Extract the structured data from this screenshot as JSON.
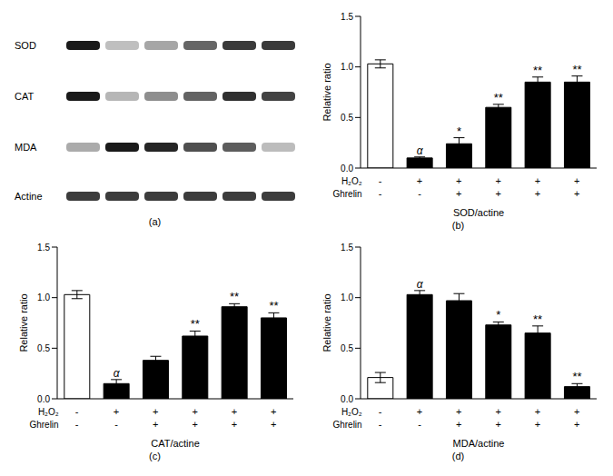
{
  "blot": {
    "panel_label": "(a)",
    "rows": [
      "SOD",
      "CAT",
      "MDA",
      "Actine"
    ]
  },
  "chart_data": [
    {
      "type": "bar",
      "panel_label": "(b)",
      "y_label": "Relative ratio",
      "x_label": "SOD/actine",
      "categories": [
        null,
        null,
        null,
        null,
        null,
        null
      ],
      "values": [
        1.03,
        0.1,
        0.24,
        0.6,
        0.85,
        0.85
      ],
      "errors": [
        0.04,
        0.01,
        0.06,
        0.03,
        0.05,
        0.06
      ],
      "annotations": [
        null,
        "α",
        "*",
        "**",
        "**",
        "**"
      ],
      "colors": [
        "#ffffff",
        "#000000",
        "#000000",
        "#000000",
        "#000000",
        "#000000"
      ],
      "conditions": [
        {
          "label": "H₂O₂",
          "marks": [
            "-",
            "+",
            "+",
            "+",
            "+",
            "+"
          ]
        },
        {
          "label": "Ghrelin",
          "marks": [
            "-",
            "-",
            "+",
            "+",
            "+",
            "+"
          ]
        }
      ],
      "ylim": [
        0,
        1.5
      ],
      "yticks": [
        {
          "value": 0,
          "label": "0.0"
        },
        {
          "value": 0.5,
          "label": "0.5"
        },
        {
          "value": 1,
          "label": "1.0"
        },
        {
          "value": 1.5,
          "label": "1.5"
        }
      ],
      "grid": false
    },
    {
      "type": "bar",
      "panel_label": "(c)",
      "y_label": "Relative ratio",
      "x_label": "CAT/actine",
      "categories": [
        null,
        null,
        null,
        null,
        null,
        null
      ],
      "values": [
        1.03,
        0.15,
        0.38,
        0.62,
        0.91,
        0.8
      ],
      "errors": [
        0.04,
        0.04,
        0.04,
        0.05,
        0.03,
        0.05
      ],
      "annotations": [
        null,
        "α",
        null,
        "**",
        "**",
        "**"
      ],
      "colors": [
        "#ffffff",
        "#000000",
        "#000000",
        "#000000",
        "#000000",
        "#000000"
      ],
      "conditions": [
        {
          "label": "H₂O₂",
          "marks": [
            "-",
            "+",
            "+",
            "+",
            "+",
            "+"
          ]
        },
        {
          "label": "Ghrelin",
          "marks": [
            "-",
            "-",
            "+",
            "+",
            "+",
            "+"
          ]
        }
      ],
      "ylim": [
        0,
        1.5
      ],
      "yticks": [
        {
          "value": 0,
          "label": "0.0"
        },
        {
          "value": 0.5,
          "label": "0.5"
        },
        {
          "value": 1,
          "label": "1.0"
        },
        {
          "value": 1.5,
          "label": "1.5"
        }
      ],
      "grid": false
    },
    {
      "type": "bar",
      "panel_label": "(d)",
      "y_label": "Relative ratio",
      "x_label": "MDA/actine",
      "categories": [
        null,
        null,
        null,
        null,
        null,
        null
      ],
      "values": [
        0.21,
        1.03,
        0.97,
        0.73,
        0.65,
        0.12
      ],
      "errors": [
        0.05,
        0.04,
        0.07,
        0.03,
        0.07,
        0.03
      ],
      "annotations": [
        null,
        "α",
        null,
        "*",
        "**",
        "**"
      ],
      "colors": [
        "#ffffff",
        "#000000",
        "#000000",
        "#000000",
        "#000000",
        "#000000"
      ],
      "conditions": [
        {
          "label": "H₂O₂",
          "marks": [
            "-",
            "+",
            "+",
            "+",
            "+",
            "+"
          ]
        },
        {
          "label": "Ghrelin",
          "marks": [
            "-",
            "-",
            "+",
            "+",
            "+",
            "+"
          ]
        }
      ],
      "ylim": [
        0,
        1.5
      ],
      "yticks": [
        {
          "value": 0,
          "label": "0.0"
        },
        {
          "value": 0.5,
          "label": "0.5"
        },
        {
          "value": 1,
          "label": "1.0"
        },
        {
          "value": 1.5,
          "label": "1.5"
        }
      ],
      "grid": false
    }
  ]
}
